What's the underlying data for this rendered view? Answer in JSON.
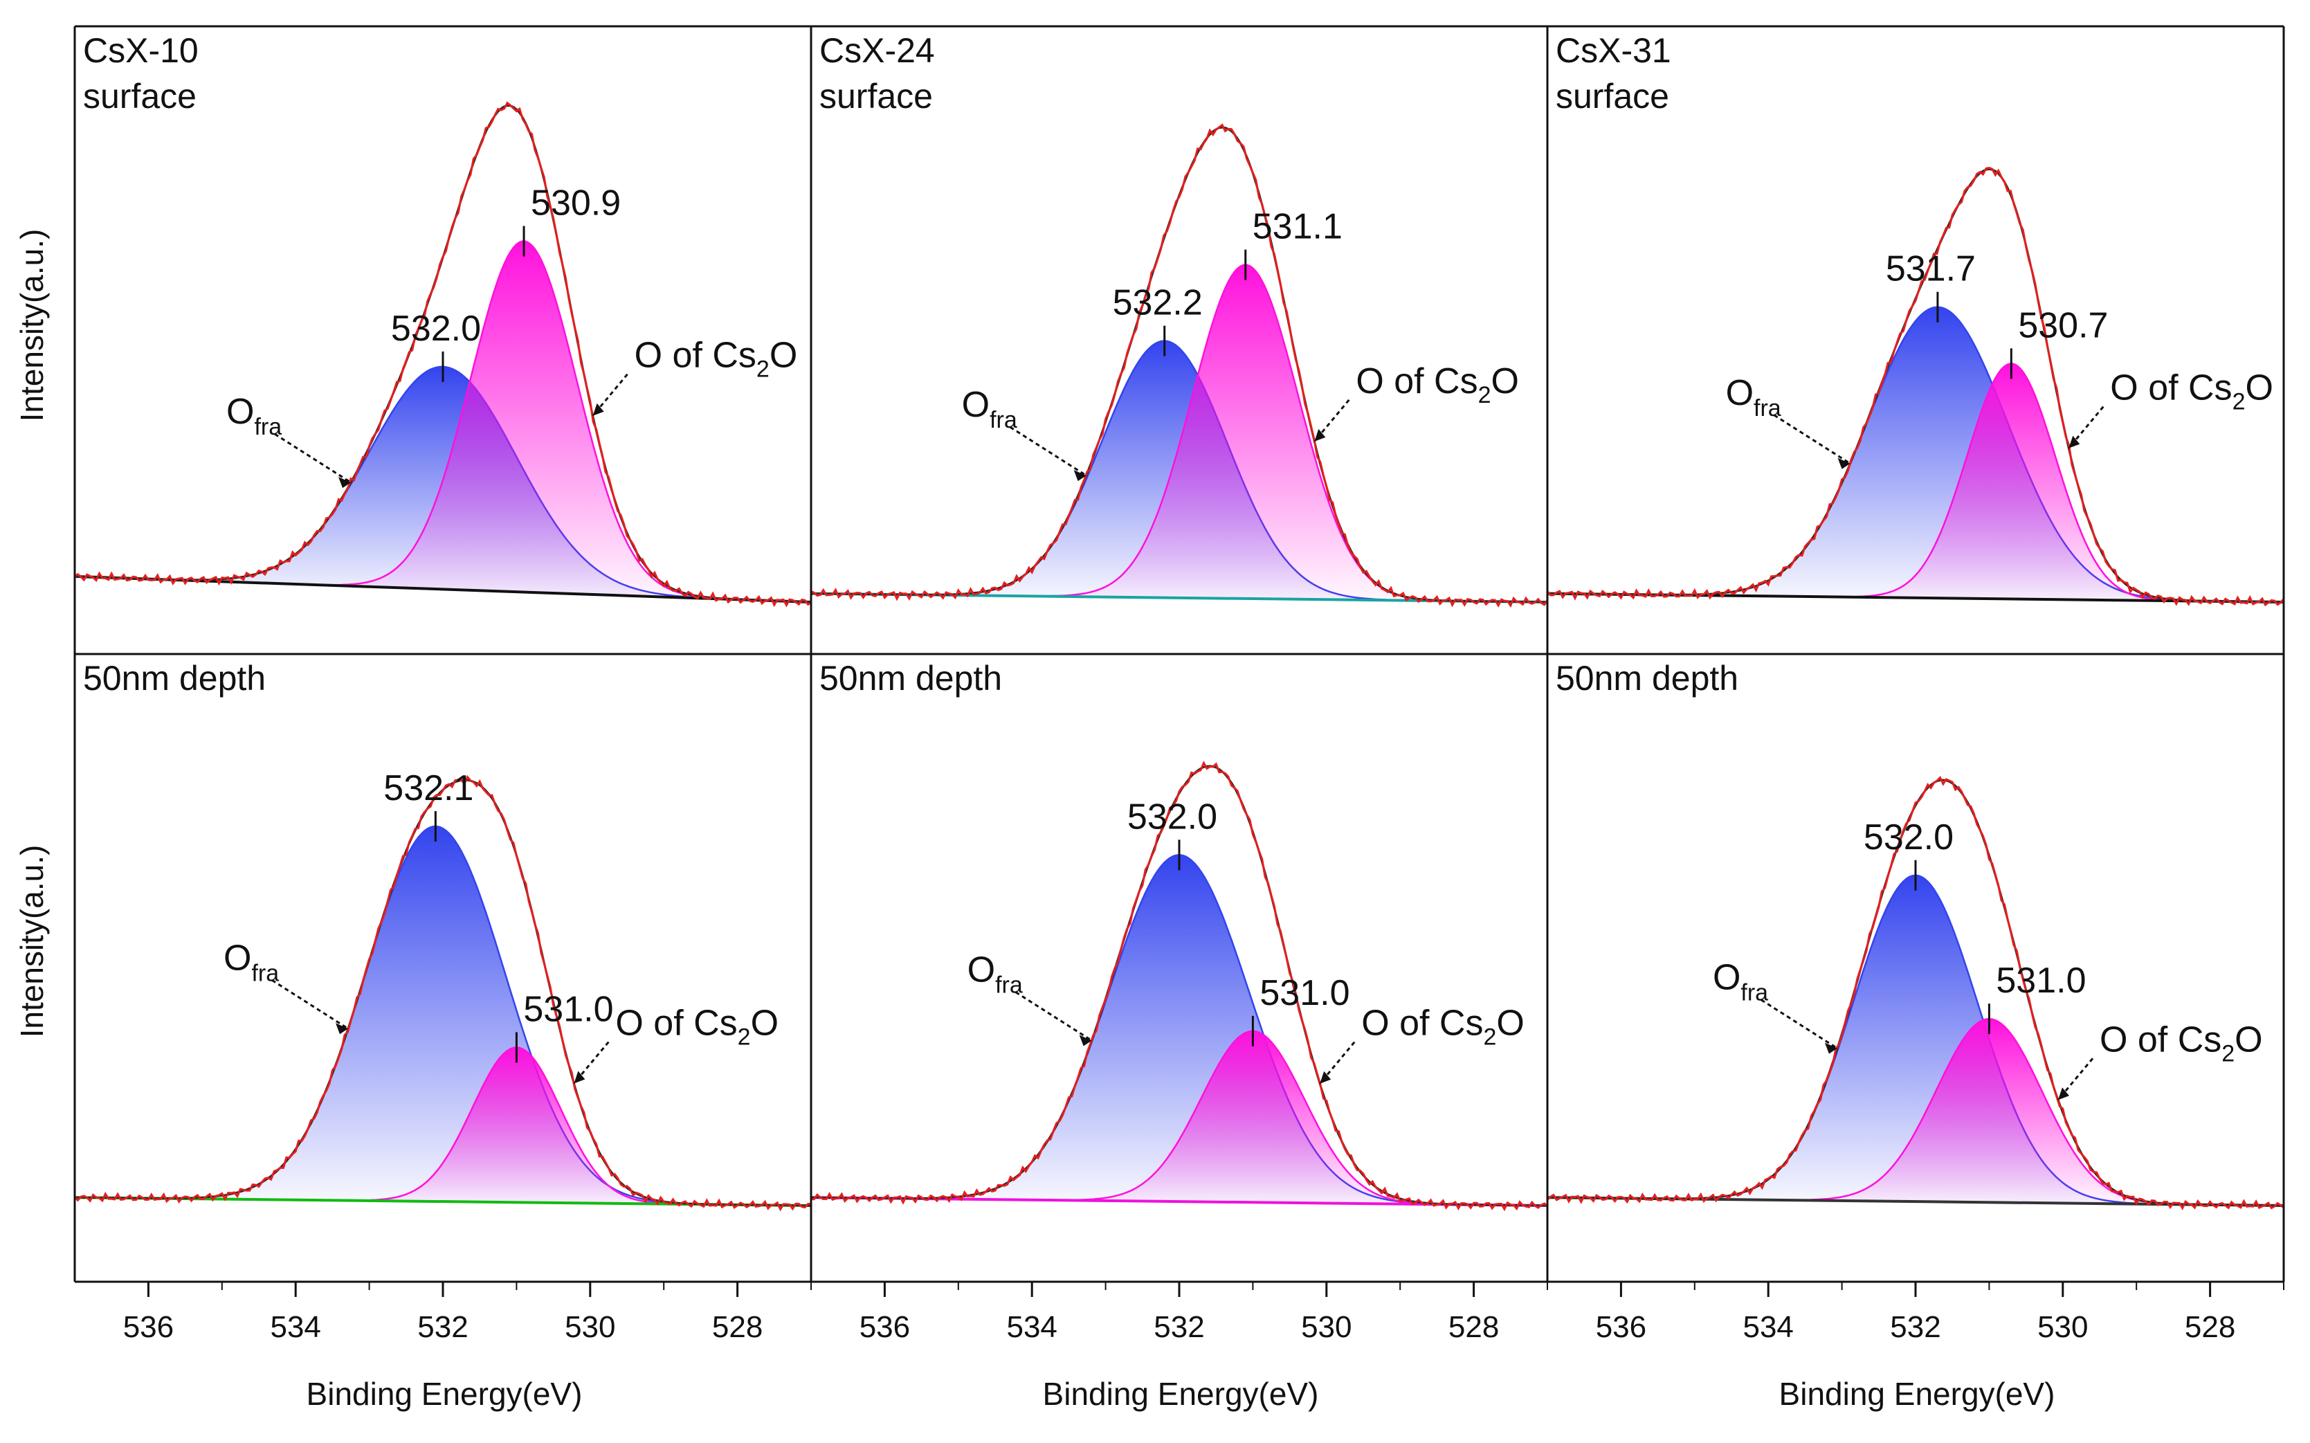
{
  "figure": {
    "y_axis_label": "Intensity(a.u.)",
    "x_axis_label": "Binding Energy(eV)",
    "colors": {
      "o_fra": "#3344ee",
      "cs2o": "#ff11dd",
      "raw": "#e61e1e",
      "envelope": "#2a2a2a",
      "baselines": [
        "#111111",
        "#1aa3a3",
        "#111111",
        "#11bb11",
        "#ee11dd",
        "#333333"
      ]
    }
  },
  "chart_data": [
    {
      "type": "area",
      "row": "surface",
      "col": 1,
      "title": "CsX-10",
      "subtitle": "surface",
      "xlim": [
        537,
        527
      ],
      "ylim": [
        0,
        1.2
      ],
      "xticks": [
        536,
        534,
        532,
        530,
        528
      ],
      "baseline": {
        "start": 0.06,
        "end": 0.0
      },
      "series": [
        {
          "name": "O_fra",
          "center": 532.0,
          "height": 0.52,
          "sigma": 1.0,
          "peak_label": "532.0"
        },
        {
          "name": "O of Cs2O",
          "center": 530.9,
          "height": 0.82,
          "sigma": 0.72,
          "peak_label": "530.9"
        }
      ],
      "annotations": {
        "ofra": "O",
        "ofra_sub": "fra",
        "cs2o_prefix": "O of Cs",
        "cs2o_sub": "2",
        "cs2o_suffix": "O"
      }
    },
    {
      "type": "area",
      "row": "surface",
      "col": 2,
      "title": "CsX-24",
      "subtitle": "surface",
      "xlim": [
        537,
        527
      ],
      "ylim": [
        0,
        1.2
      ],
      "xticks": [
        536,
        534,
        532,
        530,
        528
      ],
      "baseline": {
        "start": 0.02,
        "end": 0.0
      },
      "series": [
        {
          "name": "O_fra",
          "center": 532.2,
          "height": 0.6,
          "sigma": 0.85,
          "peak_label": "532.2"
        },
        {
          "name": "O of Cs2O",
          "center": 531.1,
          "height": 0.78,
          "sigma": 0.72,
          "peak_label": "531.1"
        }
      ],
      "annotations": {
        "ofra": "O",
        "ofra_sub": "fra",
        "cs2o_prefix": "O of Cs",
        "cs2o_sub": "2",
        "cs2o_suffix": "O"
      }
    },
    {
      "type": "area",
      "row": "surface",
      "col": 3,
      "title": "CsX-31",
      "subtitle": "surface",
      "xlim": [
        537,
        527
      ],
      "ylim": [
        0,
        1.2
      ],
      "xticks": [
        536,
        534,
        532,
        530,
        528
      ],
      "baseline": {
        "start": 0.02,
        "end": 0.0
      },
      "series": [
        {
          "name": "O_fra",
          "center": 531.7,
          "height": 0.68,
          "sigma": 0.95,
          "peak_label": "531.7"
        },
        {
          "name": "O of Cs2O",
          "center": 530.7,
          "height": 0.55,
          "sigma": 0.6,
          "peak_label": "530.7"
        }
      ],
      "annotations": {
        "ofra": "O",
        "ofra_sub": "fra",
        "cs2o_prefix": "O of Cs",
        "cs2o_sub": "2",
        "cs2o_suffix": "O"
      }
    },
    {
      "type": "area",
      "row": "depth",
      "col": 1,
      "title": "50nm depth",
      "subtitle": "",
      "xlim": [
        537,
        527
      ],
      "ylim": [
        0,
        1.2
      ],
      "xticks": [
        536,
        534,
        532,
        530,
        528
      ],
      "baseline": {
        "start": 0.02,
        "end": 0.0
      },
      "series": [
        {
          "name": "O_fra",
          "center": 532.1,
          "height": 0.92,
          "sigma": 0.95,
          "peak_label": "532.1"
        },
        {
          "name": "O of Cs2O",
          "center": 531.0,
          "height": 0.38,
          "sigma": 0.6,
          "peak_label": "531.0"
        }
      ],
      "annotations": {
        "ofra": "O",
        "ofra_sub": "fra",
        "cs2o_prefix": "O of Cs",
        "cs2o_sub": "2",
        "cs2o_suffix": "O"
      }
    },
    {
      "type": "area",
      "row": "depth",
      "col": 2,
      "title": "50nm depth",
      "subtitle": "",
      "xlim": [
        537,
        527
      ],
      "ylim": [
        0,
        1.2
      ],
      "xticks": [
        536,
        534,
        532,
        530,
        528
      ],
      "baseline": {
        "start": 0.02,
        "end": 0.0
      },
      "series": [
        {
          "name": "O_fra",
          "center": 532.0,
          "height": 0.85,
          "sigma": 0.95,
          "peak_label": "532.0"
        },
        {
          "name": "O of Cs2O",
          "center": 531.0,
          "height": 0.42,
          "sigma": 0.7,
          "peak_label": "531.0"
        }
      ],
      "annotations": {
        "ofra": "O",
        "ofra_sub": "fra",
        "cs2o_prefix": "O of Cs",
        "cs2o_sub": "2",
        "cs2o_suffix": "O"
      }
    },
    {
      "type": "area",
      "row": "depth",
      "col": 3,
      "title": "50nm depth",
      "subtitle": "",
      "xlim": [
        537,
        527
      ],
      "ylim": [
        0,
        1.2
      ],
      "xticks": [
        536,
        534,
        532,
        530,
        528
      ],
      "baseline": {
        "start": 0.02,
        "end": 0.0
      },
      "series": [
        {
          "name": "O_fra",
          "center": 532.0,
          "height": 0.8,
          "sigma": 0.85,
          "peak_label": "532.0"
        },
        {
          "name": "O of Cs2O",
          "center": 531.0,
          "height": 0.45,
          "sigma": 0.72,
          "peak_label": "531.0"
        }
      ],
      "annotations": {
        "ofra": "O",
        "ofra_sub": "fra",
        "cs2o_prefix": "O of Cs",
        "cs2o_sub": "2",
        "cs2o_suffix": "O"
      }
    }
  ]
}
